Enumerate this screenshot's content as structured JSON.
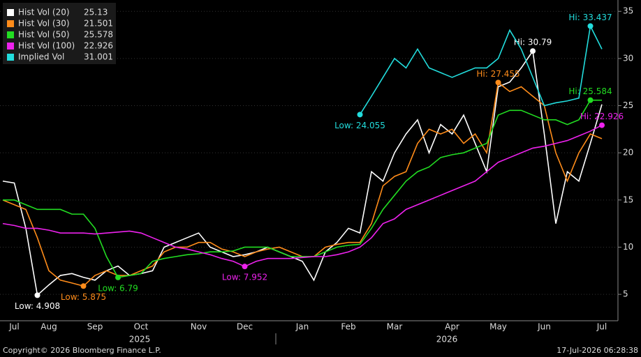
{
  "chart_data": {
    "type": "line",
    "categories": [
      null,
      "Jul",
      null,
      null,
      "Aug",
      null,
      null,
      null,
      "Sep",
      null,
      null,
      null,
      "Oct",
      null,
      null,
      null,
      null,
      "Nov",
      null,
      null,
      null,
      "Dec",
      null,
      null,
      null,
      null,
      "Jan",
      null,
      null,
      null,
      "Feb",
      null,
      null,
      null,
      "Mar",
      null,
      null,
      null,
      null,
      "Apr",
      null,
      null,
      null,
      "May",
      null,
      null,
      null,
      "Jun",
      null,
      null,
      null,
      null,
      "Jul"
    ],
    "years": [
      "2025",
      "2026"
    ],
    "ylim": [
      2.2,
      36.2
    ],
    "yticks": [
      5,
      10,
      15,
      20,
      25,
      30,
      35
    ],
    "grid": true,
    "legend": "top-left",
    "series": [
      {
        "name": "Hist Vol (20)",
        "color": "#ffffff",
        "low_label": "Low: 4.908",
        "high_label": "Hi: 30.79",
        "values": [
          17,
          16.8,
          12,
          4.908,
          6,
          7,
          7.2,
          6.8,
          6.5,
          7.5,
          8,
          7,
          7.2,
          7.5,
          10,
          10.5,
          11,
          11.5,
          10,
          9.5,
          9,
          9.2,
          9.5,
          10,
          9.5,
          9,
          8.5,
          6.5,
          9.5,
          10.5,
          12,
          11.5,
          18,
          17,
          20,
          22,
          23.5,
          20,
          23,
          22,
          24,
          21,
          18,
          27,
          27.5,
          29,
          30.79,
          22,
          12.5,
          18,
          17,
          21,
          25.13
        ]
      },
      {
        "name": "Hist Vol (30)",
        "color": "#ff8c1a",
        "low_label": "Low: 5.875",
        "high_label": "Hi: 27.455",
        "values": [
          15,
          14.5,
          14,
          11,
          7.5,
          6.5,
          6.2,
          5.875,
          7,
          7.5,
          7,
          7,
          7.5,
          8,
          9.5,
          10,
          10,
          10.5,
          10.5,
          9.8,
          9.5,
          9,
          9.5,
          9.8,
          10,
          9.5,
          9,
          9,
          10,
          10.3,
          10.5,
          10.5,
          12.5,
          16.5,
          17.5,
          18,
          21,
          22.5,
          22,
          22.5,
          21,
          22,
          20,
          27.455,
          26.5,
          27,
          26,
          25,
          20,
          17,
          20,
          22,
          21.501
        ]
      },
      {
        "name": "Hist Vol (50)",
        "color": "#22dd22",
        "low_label": "Low: 6.79",
        "high_label": "Hi: 25.584",
        "values": [
          15,
          15,
          14.5,
          14,
          14,
          14,
          13.5,
          13.5,
          12,
          9,
          6.79,
          7,
          7.2,
          8.5,
          8.8,
          9,
          9.2,
          9.3,
          9.5,
          9.5,
          9.6,
          10,
          10,
          10,
          9.5,
          9,
          9,
          9,
          9.5,
          10,
          10.2,
          10.3,
          12,
          14,
          15.5,
          17,
          18,
          18.5,
          19.5,
          19.8,
          20,
          20.5,
          21,
          24,
          24.5,
          24.5,
          24,
          23.5,
          23.5,
          23,
          23.5,
          25.584,
          25.578
        ]
      },
      {
        "name": "Hist Vol (100)",
        "color": "#ee22ee",
        "low_label": "Low: 7.952",
        "high_label": "Hi: 22.926",
        "values": [
          12.5,
          12.3,
          12,
          12,
          11.8,
          11.5,
          11.5,
          11.5,
          11.4,
          11.5,
          11.6,
          11.7,
          11.5,
          11,
          10.5,
          10,
          9.8,
          9.5,
          9.2,
          8.8,
          8.5,
          7.952,
          8.5,
          8.8,
          8.8,
          8.8,
          8.9,
          9,
          9,
          9.2,
          9.5,
          10,
          11,
          12.5,
          13,
          14,
          14.5,
          15,
          15.5,
          16,
          16.5,
          17,
          18,
          19,
          19.5,
          20,
          20.5,
          20.7,
          21,
          21.3,
          21.8,
          22.3,
          22.926
        ]
      },
      {
        "name": "Implied Vol",
        "color": "#22dddd",
        "low_label": "Low: 24.055",
        "high_label": "Hi: 33.437",
        "values": [
          null,
          null,
          null,
          null,
          null,
          null,
          null,
          null,
          null,
          null,
          null,
          null,
          null,
          null,
          null,
          null,
          null,
          null,
          null,
          null,
          null,
          null,
          null,
          null,
          null,
          null,
          null,
          null,
          null,
          null,
          null,
          24.055,
          26,
          28,
          30,
          29,
          31,
          29,
          28.5,
          28,
          28.5,
          29,
          29,
          30,
          33,
          31,
          28,
          25,
          25.3,
          25.5,
          25.8,
          33.437,
          31.001
        ]
      }
    ],
    "footer_left": "Copyright© 2026 Bloomberg Finance L.P.",
    "footer_right": "17-Jul-2026 06:28:38"
  }
}
